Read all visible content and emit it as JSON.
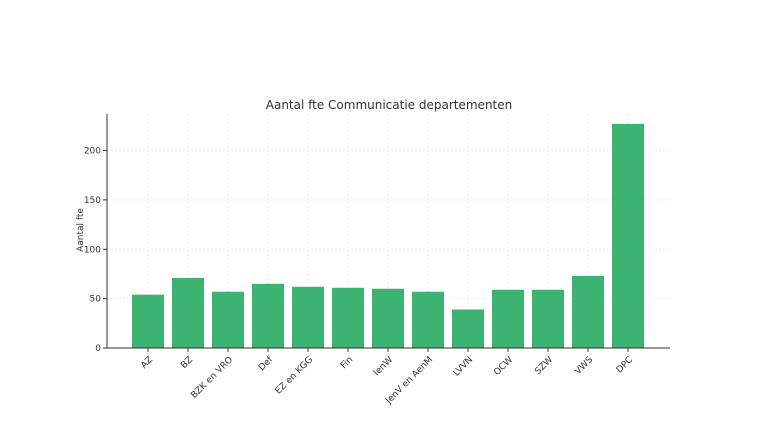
{
  "chart_data": {
    "type": "bar",
    "title": "Aantal fte Communicatie departementen",
    "xlabel": "",
    "ylabel": "Aantal fte",
    "ylim": [
      0,
      237
    ],
    "yticks": [
      0,
      50,
      100,
      150,
      200
    ],
    "grid": true,
    "bar_color": "#3cb371",
    "categories": [
      "AZ",
      "BZ",
      "BZK en VRO",
      "Def",
      "EZ en KGG",
      "Fin",
      "IenW",
      "JenV en AenM",
      "LVVN",
      "OCW",
      "SZW",
      "VWS",
      "DPC"
    ],
    "values": [
      54,
      71,
      57,
      65,
      62,
      61,
      60,
      57,
      39,
      59,
      59,
      73,
      227
    ]
  }
}
